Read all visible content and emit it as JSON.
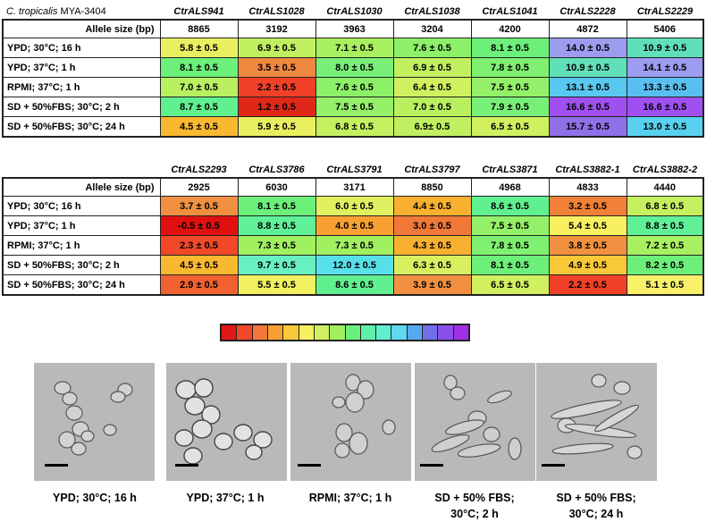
{
  "table1": {
    "corner_species": "C. tropicalis",
    "corner_strain": "MYA-3404",
    "genes": [
      "CtrALS941",
      "CtrALS1028",
      "CtrALS1030",
      "CtrALS1038",
      "CtrALS1041",
      "CtrALS2228",
      "CtrALS2229"
    ],
    "allele_label": "Allele size (bp)",
    "allele_sizes": [
      "8865",
      "3192",
      "3963",
      "3204",
      "4200",
      "4872",
      "5406"
    ],
    "rows": [
      {
        "label": "YPD; 30°C; 16 h",
        "cells": [
          "5.8 ± 0.5",
          "6.9 ± 0.5",
          "7.1 ± 0.5",
          "7.6 ± 0.5",
          "8.1 ± 0.5",
          "14.0 ± 0.5",
          "10.9 ± 0.5"
        ],
        "colors": [
          "#e8f060",
          "#c0f060",
          "#a8f060",
          "#8cf068",
          "#6cf07a",
          "#9c9cf0",
          "#60e0b8"
        ]
      },
      {
        "label": "YPD; 37°C; 1 h",
        "cells": [
          "8.1 ± 0.5",
          "3.5 ± 0.5",
          "8.0 ± 0.5",
          "6.9 ± 0.5",
          "7.8 ± 0.5",
          "10.9 ± 0.5",
          "14.1 ± 0.5"
        ],
        "colors": [
          "#6cf07a",
          "#f08840",
          "#78f078",
          "#c0f060",
          "#80f070",
          "#60e0b8",
          "#9c9cf0"
        ]
      },
      {
        "label": "RPMI; 37°C; 1 h",
        "cells": [
          "7.0 ± 0.5",
          "2.2 ± 0.5",
          "7.6 ± 0.5",
          "6.4 ± 0.5",
          "7.5 ± 0.5",
          "13.1 ± 0.5",
          "13.3 ± 0.5"
        ],
        "colors": [
          "#b8f060",
          "#f04028",
          "#8cf068",
          "#d0f060",
          "#94f068",
          "#58c8f0",
          "#58c0f0"
        ]
      },
      {
        "label": "SD + 50%FBS; 30°C; 2 h",
        "cells": [
          "8.7 ± 0.5",
          "1.2 ± 0.5",
          "7.5 ± 0.5",
          "7.0 ± 0.5",
          "7.9 ± 0.5",
          "16.6 ± 0.5",
          "16.6 ± 0.5"
        ],
        "colors": [
          "#60f090",
          "#e02818",
          "#94f068",
          "#b8f060",
          "#78f078",
          "#a050f0",
          "#a050f0"
        ]
      },
      {
        "label": "SD + 50%FBS; 30°C; 24 h",
        "cells": [
          "4.5 ± 0.5",
          "5.9 ± 0.5",
          "6.8 ± 0.5",
          "6.9± 0.5",
          "6.5 ± 0.5",
          "15.7 ± 0.5",
          "13.0 ± 0.5"
        ],
        "colors": [
          "#f8b830",
          "#e8f060",
          "#c4f060",
          "#c0f060",
          "#d0f060",
          "#9070e8",
          "#58d0f0"
        ]
      }
    ]
  },
  "table2": {
    "genes": [
      "CtrALS2293",
      "CtrALS3786",
      "CtrALS3791",
      "CtrALS3797",
      "CtrALS3871",
      "CtrALS3882-1",
      "CtrALS3882-2"
    ],
    "allele_label": "Allele size (bp)",
    "allele_sizes": [
      "2925",
      "6030",
      "3171",
      "8850",
      "4968",
      "4833",
      "4440"
    ],
    "rows": [
      {
        "label": "YPD; 30°C; 16 h",
        "cells": [
          "3.7 ± 0.5",
          "8.1 ± 0.5",
          "6.0 ± 0.5",
          "4.4 ± 0.5",
          "8.6 ± 0.5",
          "3.2 ± 0.5",
          "6.8 ± 0.5"
        ],
        "colors": [
          "#f09040",
          "#6cf07a",
          "#e0f060",
          "#f8b030",
          "#60f090",
          "#f08038",
          "#c4f060"
        ]
      },
      {
        "label": "YPD; 37°C; 1 h",
        "cells": [
          "-0.5 ± 0.5",
          "8.8 ± 0.5",
          "4.0 ± 0.5",
          "3.0 ± 0.5",
          "7.5 ± 0.5",
          "5.4 ± 0.5",
          "8.8 ± 0.5"
        ],
        "colors": [
          "#e01010",
          "#60f098",
          "#f8a030",
          "#f07838",
          "#94f068",
          "#f8f060",
          "#60f098"
        ]
      },
      {
        "label": "RPMI; 37°C; 1 h",
        "cells": [
          "2.3 ± 0.5",
          "7.3 ± 0.5",
          "7.3 ± 0.5",
          "4.3 ± 0.5",
          "7.8 ± 0.5",
          "3.8 ± 0.5",
          "7.2 ± 0.5"
        ],
        "colors": [
          "#f04828",
          "#a0f060",
          "#a0f060",
          "#f8b030",
          "#80f070",
          "#f09040",
          "#a8f060"
        ]
      },
      {
        "label": "SD + 50%FBS; 30°C; 2 h",
        "cells": [
          "4.5 ± 0.5",
          "9.7 ± 0.5",
          "12.0 ± 0.5",
          "6.3 ± 0.5",
          "8.1 ± 0.5",
          "4.9 ± 0.5",
          "8.2 ± 0.5"
        ],
        "colors": [
          "#f8b830",
          "#68f0c0",
          "#58e0e8",
          "#d8f060",
          "#6cf07a",
          "#f8c838",
          "#6cf07a"
        ]
      },
      {
        "label": "SD + 50%FBS; 30°C; 24 h",
        "cells": [
          "2.9 ± 0.5",
          "5.5 ± 0.5",
          "8.6 ± 0.5",
          "3.9 ± 0.5",
          "6.5 ± 0.5",
          "2.2 ± 0.5",
          "5.1 ± 0.5"
        ],
        "colors": [
          "#f06030",
          "#f0f060",
          "#60f090",
          "#f09040",
          "#d0f060",
          "#f04028",
          "#f8f068"
        ]
      }
    ]
  },
  "color_scale": [
    "#e01818",
    "#f04828",
    "#f07838",
    "#f8a030",
    "#f8c838",
    "#f8f060",
    "#d0f060",
    "#a0f060",
    "#6cf07a",
    "#60f0a8",
    "#60f0d0",
    "#60d8f0",
    "#58a8f0",
    "#7070e8",
    "#8850e8",
    "#a030e8"
  ],
  "micrographs": [
    {
      "caption_line1": "YPD; 30°C; 16 h",
      "caption_line2": ""
    },
    {
      "caption_line1": "YPD; 37°C; 1 h",
      "caption_line2": ""
    },
    {
      "caption_line1": "RPMI; 37°C; 1 h",
      "caption_line2": ""
    },
    {
      "caption_line1": "SD + 50% FBS;",
      "caption_line2": "30°C; 2 h"
    },
    {
      "caption_line1": "SD + 50% FBS;",
      "caption_line2": "30°C; 24 h"
    }
  ]
}
